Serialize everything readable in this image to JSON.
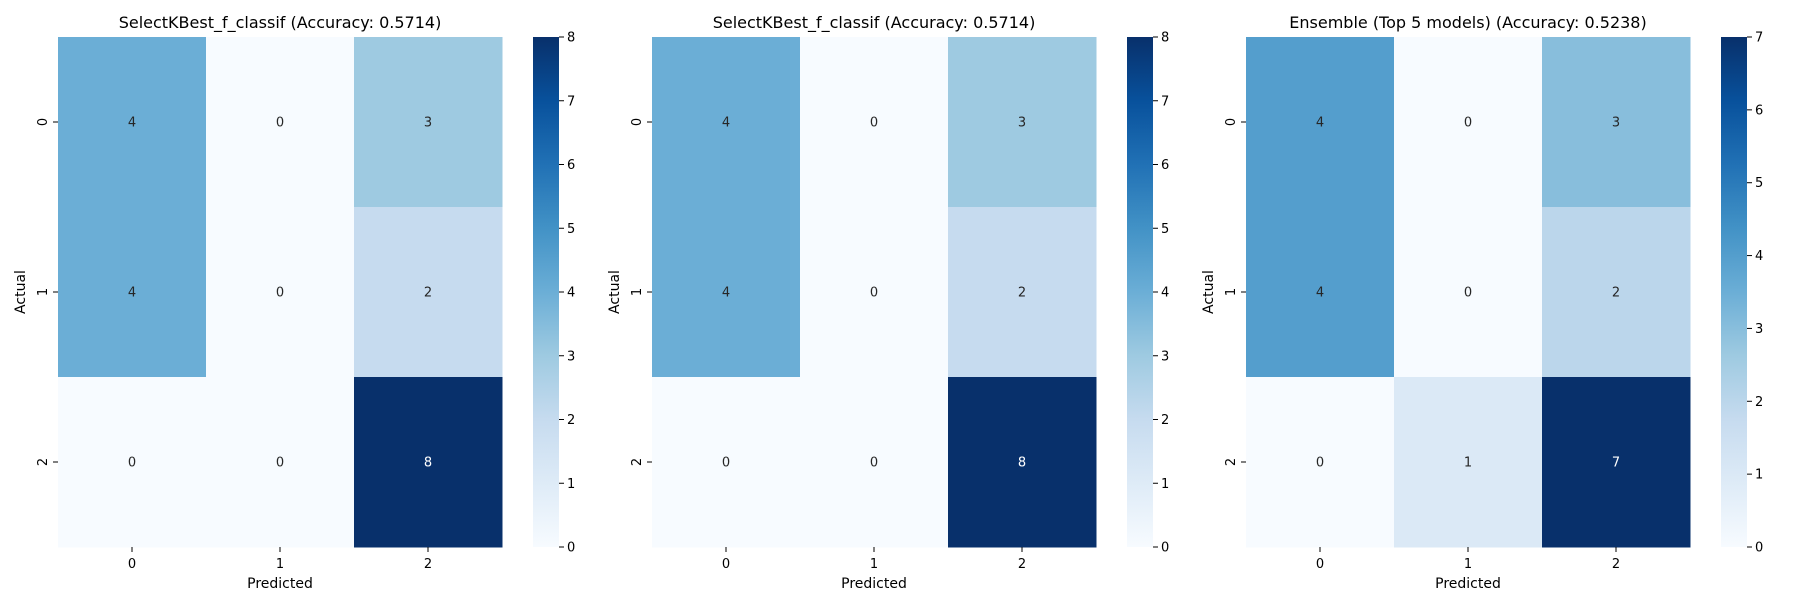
{
  "chart_data": [
    {
      "type": "heatmap",
      "title": "SelectKBest_f_classif (Accuracy: 0.5714)",
      "xlabel": "Predicted",
      "ylabel": "Actual",
      "x_categories": [
        "0",
        "1",
        "2"
      ],
      "y_categories": [
        "0",
        "1",
        "2"
      ],
      "matrix": [
        [
          4,
          0,
          3
        ],
        [
          4,
          0,
          2
        ],
        [
          0,
          0,
          8
        ]
      ],
      "colormap": "Blues",
      "color_range": [
        0,
        8
      ],
      "colorbar_ticks": [
        0,
        1,
        2,
        3,
        4,
        5,
        6,
        7,
        8
      ],
      "grid": false
    },
    {
      "type": "heatmap",
      "title": "SelectKBest_f_classif (Accuracy: 0.5714)",
      "xlabel": "Predicted",
      "ylabel": "Actual",
      "x_categories": [
        "0",
        "1",
        "2"
      ],
      "y_categories": [
        "0",
        "1",
        "2"
      ],
      "matrix": [
        [
          4,
          0,
          3
        ],
        [
          4,
          0,
          2
        ],
        [
          0,
          0,
          8
        ]
      ],
      "colormap": "Blues",
      "color_range": [
        0,
        8
      ],
      "colorbar_ticks": [
        0,
        1,
        2,
        3,
        4,
        5,
        6,
        7,
        8
      ],
      "grid": false
    },
    {
      "type": "heatmap",
      "title": "Ensemble (Top 5 models) (Accuracy: 0.5238)",
      "xlabel": "Predicted",
      "ylabel": "Actual",
      "x_categories": [
        "0",
        "1",
        "2"
      ],
      "y_categories": [
        "0",
        "1",
        "2"
      ],
      "matrix": [
        [
          4,
          0,
          3
        ],
        [
          4,
          0,
          2
        ],
        [
          0,
          1,
          7
        ]
      ],
      "colormap": "Blues",
      "color_range": [
        0,
        7
      ],
      "colorbar_ticks": [
        0,
        1,
        2,
        3,
        4,
        5,
        6,
        7
      ],
      "grid": false
    }
  ]
}
